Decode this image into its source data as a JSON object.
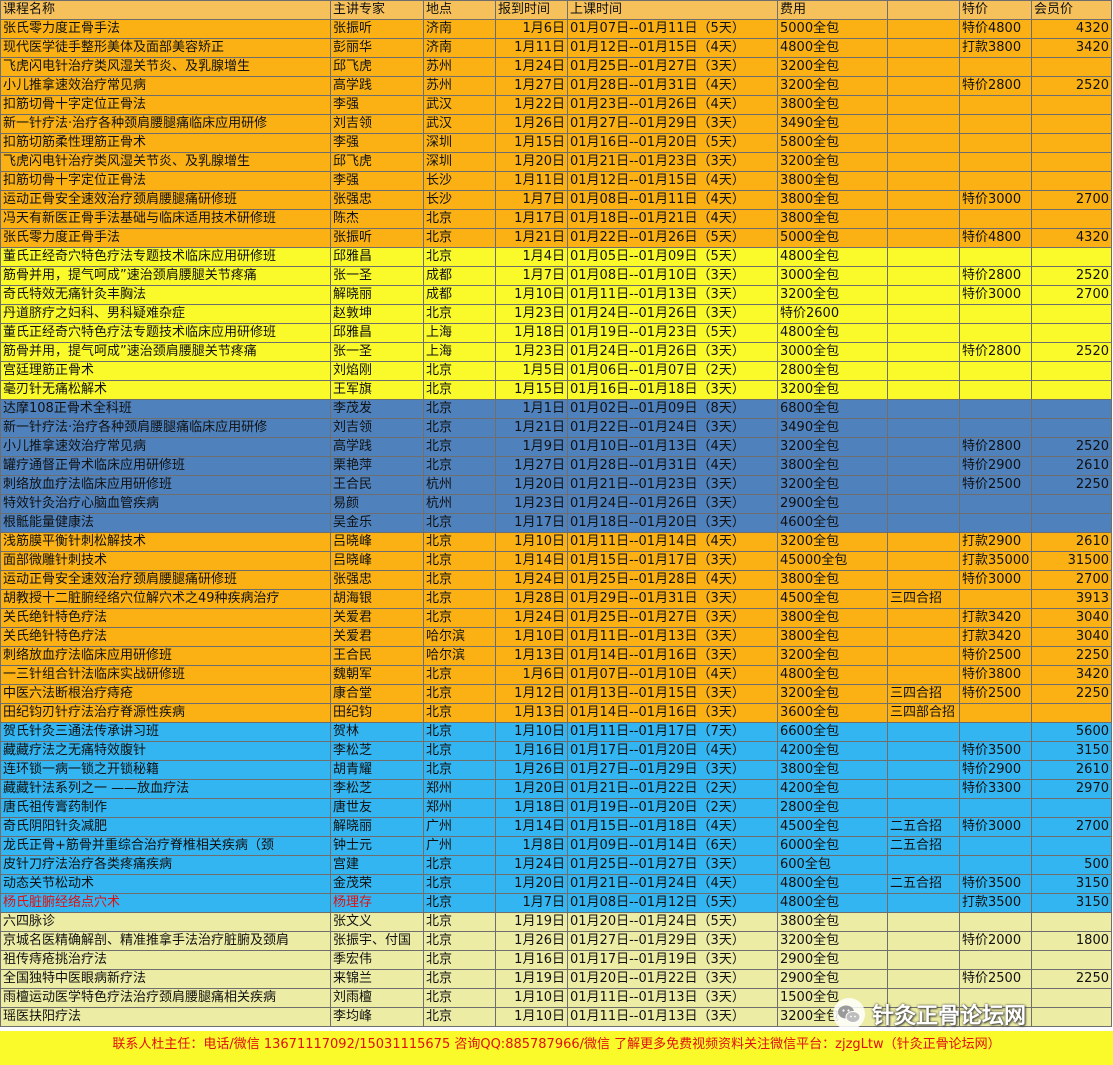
{
  "columns": [
    "课程名称",
    "主讲专家",
    "地点",
    "报到时间",
    "上课时间",
    "费用",
    "",
    "特价",
    "会员价"
  ],
  "colors": {
    "orange": "#fbb114",
    "yellow": "#fafa2a",
    "blue": "#4f81bd",
    "sky": "#33b5f2",
    "pale": "#ececa4",
    "red_text": "#e01010"
  },
  "rows": [
    {
      "band": "orange",
      "cells": [
        "张氏零力度正骨手法",
        "张振听",
        "济南",
        "1月6日",
        "01月07日--01月11日（5天）",
        "5000全包",
        "",
        "特价4800",
        "4320"
      ]
    },
    {
      "band": "orange",
      "cells": [
        "现代医学徒手整形美体及面部美容矫正",
        "彭丽华",
        "济南",
        "1月11日",
        "01月12日--01月15日（4天）",
        "4800全包",
        "",
        "打款3800",
        "3420"
      ]
    },
    {
      "band": "orange",
      "cells": [
        "飞虎闪电针治疗类风湿关节炎、及乳腺增生",
        "邱飞虎",
        "苏州",
        "1月24日",
        "01月25日--01月27日（3天）",
        "3200全包",
        "",
        "",
        ""
      ]
    },
    {
      "band": "orange",
      "cells": [
        "小儿推拿速效治疗常见病",
        "高学践",
        "苏州",
        "1月27日",
        "01月28日--01月31日（4天）",
        "3200全包",
        "",
        "特价2800",
        "2520"
      ]
    },
    {
      "band": "orange",
      "cells": [
        "扣筋切骨十字定位正骨法",
        "李强",
        "武汉",
        "1月22日",
        "01月23日--01月26日（4天）",
        "3800全包",
        "",
        "",
        ""
      ]
    },
    {
      "band": "orange",
      "cells": [
        "新一针疗法·治疗各种颈肩腰腿痛临床应用研修",
        "刘吉领",
        "武汉",
        "1月26日",
        "01月27日--01月29日（3天）",
        "3490全包",
        "",
        "",
        ""
      ]
    },
    {
      "band": "orange",
      "cells": [
        "扣筋切筋柔性理筋正骨术",
        "李强",
        "深圳",
        "1月15日",
        "01月16日--01月20日（5天）",
        "5800全包",
        "",
        "",
        ""
      ]
    },
    {
      "band": "orange",
      "cells": [
        "飞虎闪电针治疗类风湿关节炎、及乳腺增生",
        "邱飞虎",
        "深圳",
        "1月20日",
        "01月21日--01月23日（3天）",
        "3200全包",
        "",
        "",
        ""
      ]
    },
    {
      "band": "orange",
      "cells": [
        "扣筋切骨十字定位正骨法",
        "李强",
        "长沙",
        "1月11日",
        "01月12日--01月15日（4天）",
        "3800全包",
        "",
        "",
        ""
      ]
    },
    {
      "band": "orange",
      "cells": [
        "运动正骨安全速效治疗颈肩腰腿痛研修班",
        "张强忠",
        "长沙",
        "1月7日",
        "01月08日--01月11日（4天）",
        "3800全包",
        "",
        "特价3000",
        "2700"
      ]
    },
    {
      "band": "orange",
      "cells": [
        "冯天有新医正骨手法基础与临床适用技术研修班",
        "陈杰",
        "北京",
        "1月17日",
        "01月18日--01月21日（4天）",
        "3800全包",
        "",
        "",
        ""
      ]
    },
    {
      "band": "orange",
      "cells": [
        "张氏零力度正骨手法",
        "张振听",
        "北京",
        "1月21日",
        "01月22日--01月26日（5天）",
        "5000全包",
        "",
        "特价4800",
        "4320"
      ]
    },
    {
      "band": "yellow",
      "cells": [
        "董氏正经奇穴特色疗法专题技术临床应用研修班",
        "邱雅昌",
        "北京",
        "1月4日",
        "01月05日--01月09日（5天）",
        "4800全包",
        "",
        "",
        ""
      ]
    },
    {
      "band": "yellow",
      "cells": [
        "筋骨并用，提气呵成”速治颈肩腰腿关节疼痛",
        "张一圣",
        "成都",
        "1月7日",
        "01月08日--01月10日（3天）",
        "3000全包",
        "",
        "特价2800",
        "2520"
      ]
    },
    {
      "band": "yellow",
      "cells": [
        "奇氏特效无痛针灸丰胸法",
        "解晓丽",
        "成都",
        "1月10日",
        "01月11日--01月13日（3天）",
        "3200全包",
        "",
        "特价3000",
        "2700"
      ]
    },
    {
      "band": "yellow",
      "cells": [
        "丹道脐疗之妇科、男科疑难杂症",
        "赵敦坤",
        "北京",
        "1月23日",
        "01月24日--01月26日（3天）",
        "特价2600",
        "",
        "",
        ""
      ]
    },
    {
      "band": "yellow",
      "cells": [
        "董氏正经奇穴特色疗法专题技术临床应用研修班",
        "邱雅昌",
        "上海",
        "1月18日",
        "01月19日--01月23日（5天）",
        "4800全包",
        "",
        "",
        ""
      ]
    },
    {
      "band": "yellow",
      "cells": [
        "筋骨并用，提气呵成”速治颈肩腰腿关节疼痛",
        "张一圣",
        "上海",
        "1月23日",
        "01月24日--01月26日（3天）",
        "3000全包",
        "",
        "特价2800",
        "2520"
      ]
    },
    {
      "band": "yellow",
      "cells": [
        "宫廷理筋正骨术",
        "刘焰刚",
        "北京",
        "1月5日",
        "01月06日--01月07日（2天）",
        "2800全包",
        "",
        "",
        ""
      ]
    },
    {
      "band": "yellow",
      "cells": [
        "毫刃针无痛松解术",
        "王军旗",
        "北京",
        "1月15日",
        "01月16日--01月18日（3天）",
        "3200全包",
        "",
        "",
        ""
      ]
    },
    {
      "band": "blue",
      "cells": [
        "达摩108正骨术全科班",
        "李茂发",
        "北京",
        "1月1日",
        "01月02日--01月09日（8天）",
        "6800全包",
        "",
        "",
        ""
      ]
    },
    {
      "band": "blue",
      "cells": [
        "新一针疗法·治疗各种颈肩腰腿痛临床应用研修",
        "刘吉领",
        "北京",
        "1月21日",
        "01月22日--01月24日（3天）",
        "3490全包",
        "",
        "",
        ""
      ]
    },
    {
      "band": "blue",
      "cells": [
        "小儿推拿速效治疗常见病",
        "高学践",
        "北京",
        "1月9日",
        "01月10日--01月13日（4天）",
        "3200全包",
        "",
        "特价2800",
        "2520"
      ]
    },
    {
      "band": "blue",
      "cells": [
        "罐疗通督正骨术临床应用研修班",
        "栗艳萍",
        "北京",
        "1月27日",
        "01月28日--01月31日（4天）",
        "3800全包",
        "",
        "特价2900",
        "2610"
      ]
    },
    {
      "band": "blue",
      "cells": [
        "刺络放血疗法临床应用研修班",
        "王合民",
        "杭州",
        "1月20日",
        "01月21日--01月23日（3天）",
        "3200全包",
        "",
        "特价2500",
        "2250"
      ]
    },
    {
      "band": "blue",
      "cells": [
        "特效针灸治疗心脑血管疾病",
        "易颜",
        "杭州",
        "1月23日",
        "01月24日--01月26日（3天）",
        "2900全包",
        "",
        "",
        ""
      ]
    },
    {
      "band": "blue",
      "cells": [
        "根骶能量健康法",
        "吴金乐",
        "北京",
        "1月17日",
        "01月18日--01月20日（3天）",
        "4600全包",
        "",
        "",
        ""
      ]
    },
    {
      "band": "orange",
      "cells": [
        "浅筋膜平衡针刺松解技术",
        "吕晓峰",
        "北京",
        "1月10日",
        "01月11日--01月14日（4天）",
        "3200全包",
        "",
        "打款2900",
        "2610"
      ]
    },
    {
      "band": "orange",
      "cells": [
        "面部微雕针刺技术",
        "吕晓峰",
        "北京",
        "1月14日",
        "01月15日--01月17日（3天）",
        "45000全包",
        "",
        "打款35000",
        "31500"
      ]
    },
    {
      "band": "orange",
      "cells": [
        "运动正骨安全速效治疗颈肩腰腿痛研修班",
        "张强忠",
        "北京",
        "1月24日",
        "01月25日--01月28日（4天）",
        "3800全包",
        "",
        "特价3000",
        "2700"
      ]
    },
    {
      "band": "orange",
      "cells": [
        "胡教授十二脏腑经络穴位解穴术之49种疾病治疗",
        "胡海银",
        "北京",
        "1月28日",
        "01月29日--01月31日（3天）",
        "4500全包",
        "三四合招",
        "",
        "3913"
      ]
    },
    {
      "band": "orange",
      "cells": [
        "关氏绝针特色疗法",
        "关爱君",
        "北京",
        "1月24日",
        "01月25日--01月27日（3天）",
        "3800全包",
        "",
        "打款3420",
        "3040"
      ]
    },
    {
      "band": "orange",
      "cells": [
        "关氏绝针特色疗法",
        "关爱君",
        "哈尔滨",
        "1月10日",
        "01月11日--01月13日（3天）",
        "3800全包",
        "",
        "打款3420",
        "3040"
      ]
    },
    {
      "band": "orange",
      "cells": [
        "刺络放血疗法临床应用研修班",
        "王合民",
        "哈尔滨",
        "1月13日",
        "01月14日--01月16日（3天）",
        "3200全包",
        "",
        "特价2500",
        "2250"
      ]
    },
    {
      "band": "orange",
      "cells": [
        "一三针组合针法临床实战研修班",
        "魏朝军",
        "北京",
        "1月6日",
        "01月07日--01月10日（4天）",
        "4800全包",
        "",
        "特价3800",
        "3420"
      ]
    },
    {
      "band": "orange",
      "cells": [
        "中医六法断根治疗痔疮",
        "康合堂",
        "北京",
        "1月12日",
        "01月13日--01月15日（3天）",
        "3200全包",
        "三四合招",
        "特价2500",
        "2250"
      ]
    },
    {
      "band": "orange",
      "cells": [
        "田纪钧刃针疗法治疗脊源性疾病",
        "田纪钧",
        "北京",
        "1月13日",
        "01月14日--01月16日（3天）",
        "3600全包",
        "三四部合招",
        "",
        ""
      ]
    },
    {
      "band": "sky",
      "cells": [
        "贺氏针灸三通法传承讲习班",
        "贺林",
        "北京",
        "1月10日",
        "01月11日--01月17日（7天）",
        "6600全包",
        "",
        "",
        "5600"
      ]
    },
    {
      "band": "sky",
      "cells": [
        "藏藏疗法之无痛特效腹针",
        "李松芝",
        "北京",
        "1月16日",
        "01月17日--01月20日（4天）",
        "4200全包",
        "",
        "特价3500",
        "3150"
      ]
    },
    {
      "band": "sky",
      "cells": [
        "连环锁一病一锁之开锁秘籍",
        "胡青耀",
        "北京",
        "1月26日",
        "01月27日--01月29日（3天）",
        "3800全包",
        "",
        "特价2900",
        "2610"
      ]
    },
    {
      "band": "sky",
      "cells": [
        "藏藏针法系列之一 ——放血疗法",
        "李松芝",
        "郑州",
        "1月20日",
        "01月21日--01月22日（2天）",
        "4200全包",
        "",
        "特价3300",
        "2970"
      ]
    },
    {
      "band": "sky",
      "cells": [
        "唐氏祖传膏药制作",
        "唐世友",
        "郑州",
        "1月18日",
        "01月19日--01月20日（2天）",
        "2800全包",
        "",
        "",
        ""
      ]
    },
    {
      "band": "sky",
      "cells": [
        "奇氏阴阳针灸减肥",
        "解晓丽",
        "广州",
        "1月14日",
        "01月15日--01月18日（4天）",
        "4500全包",
        "二五合招",
        "特价3000",
        "2700"
      ]
    },
    {
      "band": "sky",
      "cells": [
        "龙氏正骨+筋骨并重综合治疗脊椎相关疾病（颈",
        "钟士元",
        "广州",
        "1月8日",
        "01月09日--01月14日（6天）",
        "6000全包",
        "二五合招",
        "",
        ""
      ]
    },
    {
      "band": "sky",
      "cells": [
        "皮针刀疗法治疗各类疼痛疾病",
        "宫建",
        "北京",
        "1月24日",
        "01月25日--01月27日（3天）",
        "600全包",
        "",
        "",
        "500"
      ]
    },
    {
      "band": "sky",
      "cells": [
        "动态关节松动术",
        "金茂荣",
        "北京",
        "1月20日",
        "01月21日--01月24日（4天）",
        "4800全包",
        "二五合招",
        "特价3500",
        "3150"
      ]
    },
    {
      "band": "sky",
      "red": true,
      "cells": [
        "杨氏脏腑经络点穴术",
        "杨理存",
        "北京",
        "1月7日",
        "01月08日--01月12日（5天）",
        "4800全包",
        "",
        "打款3500",
        "3150"
      ]
    },
    {
      "band": "pale",
      "cells": [
        "六四脉诊",
        "张文义",
        "北京",
        "1月19日",
        "01月20日--01月24日（5天）",
        "3800全包",
        "",
        "",
        ""
      ]
    },
    {
      "band": "pale",
      "cells": [
        "京城名医精确解剖、精准推拿手法治疗脏腑及颈肩",
        "张振宇、付国",
        "北京",
        "1月26日",
        "01月27日--01月29日（3天）",
        "3200全包",
        "",
        "特价2000",
        "1800"
      ]
    },
    {
      "band": "pale",
      "cells": [
        "祖传痔疮挑治疗法",
        "季宏伟",
        "北京",
        "1月16日",
        "01月17日--01月19日（3天）",
        "2900全包",
        "",
        "",
        ""
      ]
    },
    {
      "band": "pale",
      "cells": [
        "全国独特中医眼病新疗法",
        "来锦兰",
        "北京",
        "1月19日",
        "01月20日--01月22日（3天）",
        "2900全包",
        "",
        "特价2500",
        "2250"
      ]
    },
    {
      "band": "pale",
      "cells": [
        "雨檀运动医学特色疗法治疗颈肩腰腿痛相关疾病",
        "刘雨檀",
        "北京",
        "1月10日",
        "01月11日--01月13日（3天）",
        "1500全包",
        "",
        "",
        ""
      ]
    },
    {
      "band": "pale",
      "cells": [
        "瑶医扶阳疗法",
        "李均峰",
        "北京",
        "1月10日",
        "01月11日--01月13日（3天）",
        "3200全包",
        "",
        "",
        ""
      ]
    }
  ],
  "watermark": {
    "text": "针灸正骨论坛网",
    "icon": "wechat-logo-icon"
  },
  "footer": {
    "text": "联系人杜主任：电话/微信 13671117092/15031115675 咨询QQ:885787966/微信 了解更多免费视频资料关注微信平台：zjzgLtw（针灸正骨论坛网）"
  }
}
